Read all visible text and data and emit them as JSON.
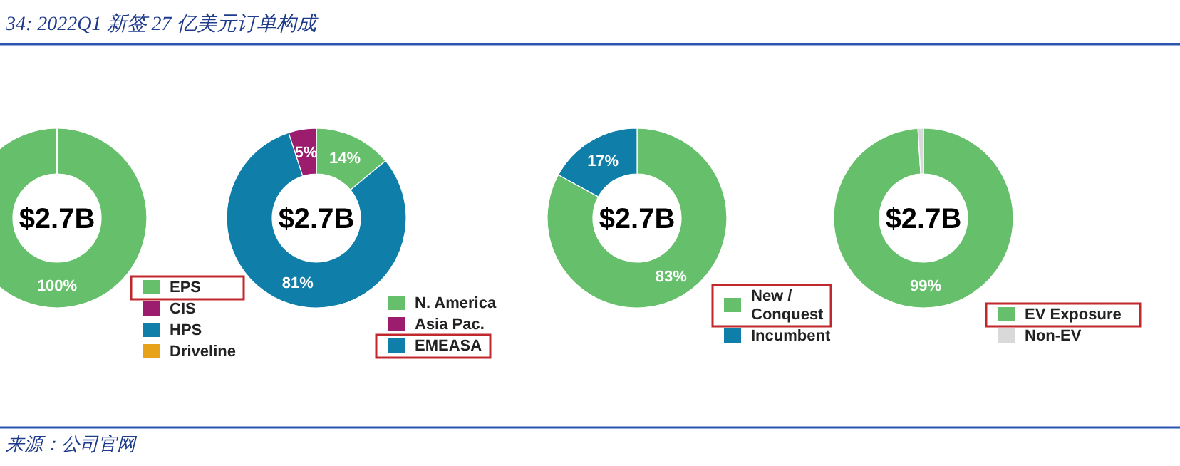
{
  "chart_data": [
    {
      "type": "donut",
      "title": "34: 2022Q1 新签 27 亿美元订单构成",
      "categories": [
        "EPS",
        "CIS",
        "HPS",
        "Driveline"
      ],
      "values": [
        100,
        0,
        0,
        0
      ],
      "colors": [
        "#66bf6a",
        "#9c1c6e",
        "#0f7ea8",
        "#e8a21a"
      ],
      "value_labels": [
        "100%",
        null,
        null,
        null
      ],
      "annotations": [
        "$2.7B",
        "来源：公司官网"
      ],
      "legend": "bottom right"
    },
    {
      "type": "donut",
      "categories": [
        "N. America",
        "EMEASA",
        "Asia Pac."
      ],
      "values": [
        14,
        81,
        5
      ],
      "colors": [
        "#66bf6a",
        "#0f7ea8",
        "#9c1c6e"
      ],
      "value_labels": [
        "14%",
        "81%",
        "5%"
      ],
      "annotations": [
        "$2.7B"
      ],
      "legend": "bottom right"
    },
    {
      "type": "donut",
      "categories": [
        "New / Conquest",
        "Incumbent"
      ],
      "values": [
        83,
        17
      ],
      "colors": [
        "#66bf6a",
        "#0f7ea8"
      ],
      "value_labels": [
        "83%",
        "17%"
      ],
      "annotations": [
        "$2.7B"
      ],
      "legend": "bottom right"
    },
    {
      "type": "donut",
      "categories": [
        "EV Exposure",
        "Non-EV"
      ],
      "values": [
        99,
        1
      ],
      "colors": [
        "#66bf6a",
        "#d9d9d9"
      ],
      "value_labels": [
        "99%",
        null
      ],
      "annotations": [
        "$2.7B"
      ],
      "legend": "bottom right"
    }
  ]
}
